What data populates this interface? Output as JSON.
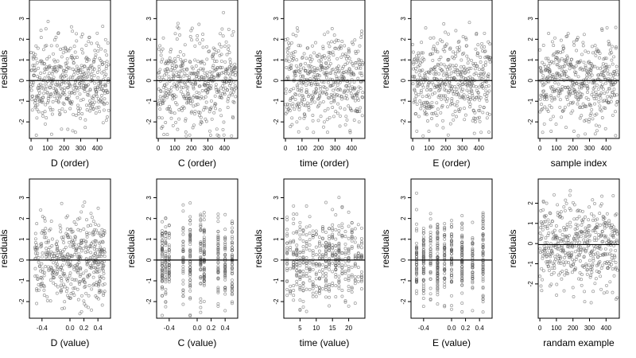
{
  "chart_data": [
    {
      "type": "scatter",
      "xlabel": "D (order)",
      "ylabel": "residuals",
      "xlim": [
        -10,
        480
      ],
      "ylim": [
        -2.8,
        3.9
      ],
      "xticks": [
        0,
        100,
        200,
        300,
        400
      ],
      "yticks": [
        -2,
        -1,
        0,
        1,
        2,
        3
      ],
      "refline_y": 0,
      "n_points": 470,
      "x_pattern": "order",
      "seed": 11
    },
    {
      "type": "scatter",
      "xlabel": "C (order)",
      "ylabel": "residuals",
      "xlim": [
        -10,
        480
      ],
      "ylim": [
        -2.8,
        3.9
      ],
      "xticks": [
        0,
        100,
        200,
        300,
        400
      ],
      "yticks": [
        -2,
        -1,
        0,
        1,
        2,
        3
      ],
      "refline_y": 0,
      "n_points": 470,
      "x_pattern": "order",
      "seed": 23
    },
    {
      "type": "scatter",
      "xlabel": "time (order)",
      "ylabel": "residuals",
      "xlim": [
        -10,
        480
      ],
      "ylim": [
        -2.8,
        3.9
      ],
      "xticks": [
        0,
        100,
        200,
        300,
        400
      ],
      "yticks": [
        -2,
        -1,
        0,
        1,
        2,
        3
      ],
      "refline_y": 0,
      "n_points": 470,
      "x_pattern": "order",
      "seed": 37
    },
    {
      "type": "scatter",
      "xlabel": "E (order)",
      "ylabel": "residuals",
      "xlim": [
        -10,
        480
      ],
      "ylim": [
        -2.8,
        3.9
      ],
      "xticks": [
        0,
        100,
        200,
        300,
        400
      ],
      "yticks": [
        -2,
        -1,
        0,
        1,
        2,
        3
      ],
      "refline_y": 0,
      "n_points": 470,
      "x_pattern": "order",
      "seed": 41
    },
    {
      "type": "scatter",
      "xlabel": "sample index",
      "ylabel": "residuals",
      "xlim": [
        -10,
        480
      ],
      "ylim": [
        -2.8,
        3.9
      ],
      "xticks": [
        0,
        100,
        200,
        300,
        400
      ],
      "yticks": [
        -2,
        -1,
        0,
        1,
        2,
        3
      ],
      "refline_y": 0,
      "n_points": 470,
      "x_pattern": "order",
      "seed": 53
    },
    {
      "type": "scatter",
      "xlabel": "D (value)",
      "ylabel": "residuals",
      "xlim": [
        -0.58,
        0.58
      ],
      "ylim": [
        -2.8,
        3.9
      ],
      "xticks": [
        -0.4,
        0.0,
        0.2,
        0.4
      ],
      "yticks": [
        -2,
        -1,
        0,
        1,
        2,
        3
      ],
      "refline_y": 0,
      "n_points": 470,
      "x_pattern": "uniform",
      "seed": 61
    },
    {
      "type": "scatter",
      "xlabel": "C (value)",
      "ylabel": "residuals",
      "xlim": [
        -0.58,
        0.58
      ],
      "ylim": [
        -2.8,
        3.9
      ],
      "xticks": [
        -0.4,
        0.0,
        0.2,
        0.4
      ],
      "yticks": [
        -2,
        -1,
        0,
        1,
        2,
        3
      ],
      "refline_y": 0,
      "n_points": 470,
      "x_pattern": "levels",
      "x_levels": [
        -0.5,
        -0.45,
        -0.4,
        -0.2,
        -0.1,
        0.05,
        0.1,
        0.3,
        0.4,
        0.5
      ],
      "seed": 71
    },
    {
      "type": "scatter",
      "xlabel": "time (value)",
      "ylabel": "residuals",
      "xlim": [
        0,
        25
      ],
      "ylim": [
        -2.8,
        3.9
      ],
      "xticks": [
        5,
        10,
        15,
        20
      ],
      "yticks": [
        -2,
        -1,
        0,
        1,
        2,
        3
      ],
      "refline_y": 0,
      "n_points": 470,
      "x_pattern": "levels",
      "x_levels": [
        1,
        2,
        3,
        4,
        5,
        6,
        7,
        8,
        9,
        10,
        11,
        12,
        13,
        14,
        15,
        16,
        17,
        18,
        19,
        20,
        21,
        22,
        23,
        24
      ],
      "seed": 83
    },
    {
      "type": "scatter",
      "xlabel": "E (value)",
      "ylabel": "residuals",
      "xlim": [
        -0.58,
        0.58
      ],
      "ylim": [
        -2.8,
        3.9
      ],
      "xticks": [
        -0.4,
        0.0,
        0.2,
        0.4
      ],
      "yticks": [
        -2,
        -1,
        0,
        1,
        2,
        3
      ],
      "refline_y": 0,
      "n_points": 470,
      "x_pattern": "levels",
      "x_levels": [
        -0.5,
        -0.4,
        -0.3,
        -0.2,
        -0.1,
        0.0,
        0.15,
        0.3,
        0.45
      ],
      "seed": 97
    },
    {
      "type": "scatter",
      "xlabel": "randam example",
      "ylabel": "residuals",
      "xlim": [
        -10,
        480
      ],
      "ylim": [
        -3.7,
        3.2
      ],
      "xticks": [
        0,
        100,
        200,
        300,
        400
      ],
      "yticks": [
        -2,
        -1,
        0,
        1,
        2
      ],
      "refline_y": -0.05,
      "n_points": 470,
      "x_pattern": "order",
      "seed": 101
    }
  ]
}
